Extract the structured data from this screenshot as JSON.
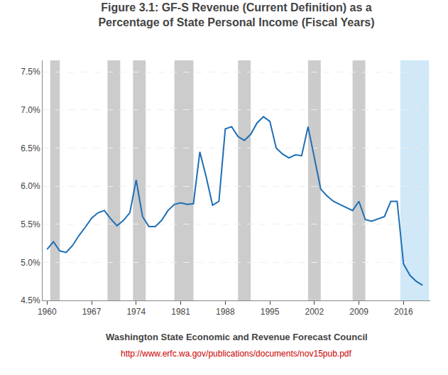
{
  "chart_data": {
    "type": "line",
    "title": "Figure 3.1: GF-S Revenue (Current Definition) as a\nPercentage of State Personal Income (Fiscal Years)",
    "x": [
      1960,
      1961,
      1962,
      1963,
      1964,
      1965,
      1966,
      1967,
      1968,
      1969,
      1970,
      1971,
      1972,
      1973,
      1974,
      1975,
      1976,
      1977,
      1978,
      1979,
      1980,
      1981,
      1982,
      1983,
      1984,
      1985,
      1986,
      1987,
      1988,
      1989,
      1990,
      1991,
      1992,
      1993,
      1994,
      1995,
      1996,
      1997,
      1998,
      1999,
      2000,
      2001,
      2002,
      2003,
      2004,
      2005,
      2006,
      2007,
      2008,
      2009,
      2010,
      2011,
      2012,
      2013,
      2014,
      2015,
      2016,
      2017,
      2018,
      2019
    ],
    "values": [
      5.17,
      5.27,
      5.15,
      5.13,
      5.22,
      5.35,
      5.46,
      5.58,
      5.65,
      5.68,
      5.57,
      5.48,
      5.55,
      5.65,
      6.08,
      5.6,
      5.47,
      5.47,
      5.55,
      5.68,
      5.76,
      5.78,
      5.76,
      5.77,
      6.45,
      6.12,
      5.75,
      5.8,
      6.75,
      6.78,
      6.65,
      6.6,
      6.68,
      6.83,
      6.91,
      6.85,
      6.5,
      6.42,
      6.37,
      6.41,
      6.4,
      6.78,
      6.37,
      5.96,
      5.87,
      5.8,
      5.76,
      5.72,
      5.68,
      5.8,
      5.56,
      5.54,
      5.57,
      5.6,
      5.8,
      5.8,
      4.98,
      4.83,
      4.75,
      4.7
    ],
    "color": "#1f6eb5",
    "xlim": [
      1959.3,
      2020.2
    ],
    "xticks": [
      1960,
      1967,
      1974,
      1981,
      1988,
      1995,
      2002,
      2009,
      2016
    ],
    "ylim": [
      4.5,
      7.65
    ],
    "yticks": [
      {
        "value": 4.5,
        "label": "4.5%"
      },
      {
        "value": 5.0,
        "label": "5.0%"
      },
      {
        "value": 5.5,
        "label": "5.5%"
      },
      {
        "value": 6.0,
        "label": "6.0%"
      },
      {
        "value": 6.5,
        "label": "6.5%"
      },
      {
        "value": 7.0,
        "label": "7.0%"
      },
      {
        "value": 7.5,
        "label": "7.5%"
      }
    ],
    "grid": true,
    "shaded_ranges": [
      {
        "x": [
          1960.5,
          1962.0
        ],
        "color": "#cccccc"
      },
      {
        "x": [
          1969.5,
          1971.5
        ],
        "color": "#cccccc"
      },
      {
        "x": [
          1973.5,
          1975.5
        ],
        "color": "#cccccc"
      },
      {
        "x": [
          1980.0,
          1983.0
        ],
        "color": "#cccccc"
      },
      {
        "x": [
          1990.0,
          1992.0
        ],
        "color": "#cccccc"
      },
      {
        "x": [
          2001.0,
          2003.0
        ],
        "color": "#cccccc"
      },
      {
        "x": [
          2008.0,
          2010.0
        ],
        "color": "#cccccc"
      },
      {
        "x": [
          2015.5,
          2020.0
        ],
        "color": "#d0e8f8"
      }
    ],
    "annotations": [
      {
        "text": "Washington State Economic and Revenue Forecast Council"
      },
      {
        "text": "http://www.erfc.wa.gov/publications/documents/nov15pub.pdf",
        "color": "#cc0000"
      }
    ]
  }
}
